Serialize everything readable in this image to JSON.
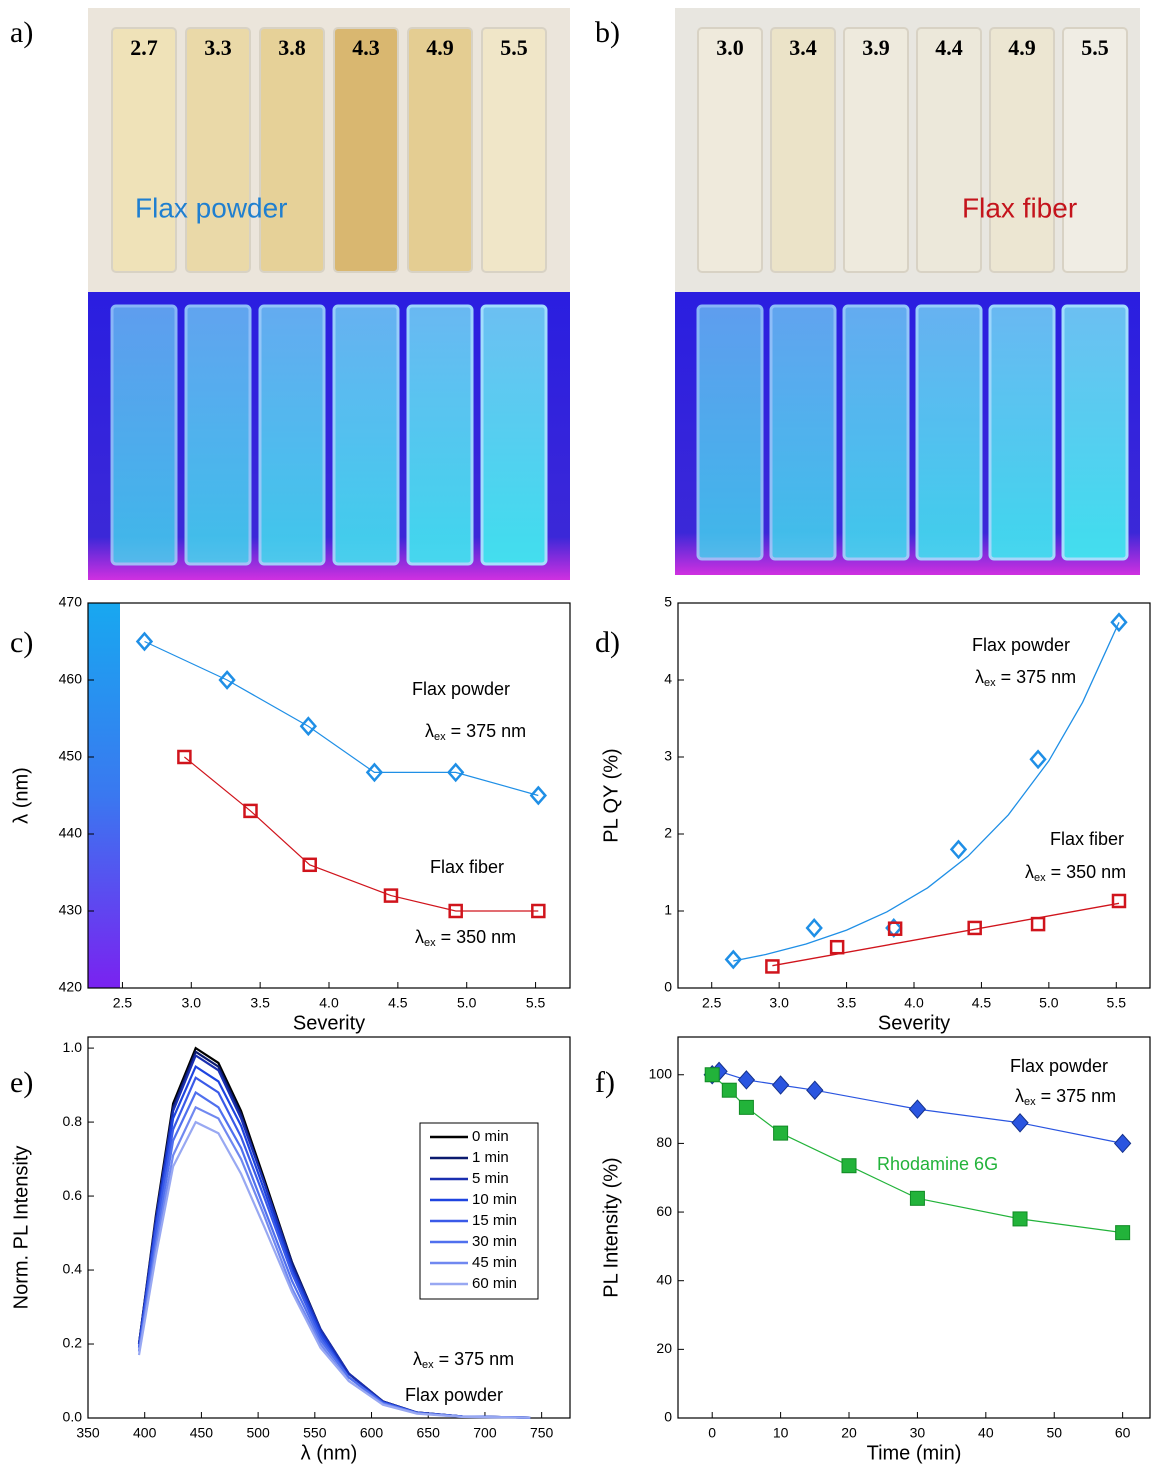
{
  "photos": [
    {
      "label": "a)",
      "cuvettes": [
        "2.7",
        "3.3",
        "3.8",
        "4.3",
        "4.9",
        "5.5"
      ],
      "caption": "Flax powder",
      "caption_color": "#1f7fd0"
    },
    {
      "label": "b)",
      "cuvettes": [
        "3.0",
        "3.4",
        "3.9",
        "4.4",
        "4.9",
        "5.5"
      ],
      "caption": "Flax fiber",
      "caption_color": "#c4141c"
    }
  ],
  "chart_data": [
    {
      "type": "line",
      "panel_label": "c)",
      "xlabel": "Severity",
      "ylabel": "λ (nm)",
      "xlim": [
        2.25,
        5.75
      ],
      "ylim": [
        420,
        470
      ],
      "xticks": [
        2.5,
        {
          "value": 3,
          "label": "3.0"
        },
        3.5,
        {
          "value": 4,
          "label": "4.0"
        },
        4.5,
        {
          "value": 5,
          "label": "5.0"
        },
        5.5
      ],
      "yticks": [
        420,
        430,
        440,
        450,
        460,
        470
      ],
      "series": [
        {
          "name": "Flax powder",
          "color": "#1f8fe6",
          "marker": "diamond",
          "filled": false,
          "connect": true,
          "x": [
            2.66,
            3.26,
            3.85,
            4.33,
            4.92,
            5.52
          ],
          "values": [
            465,
            460,
            454,
            448,
            448,
            445
          ]
        },
        {
          "name": "Flax fiber",
          "color": "#d0141c",
          "marker": "square",
          "filled": false,
          "connect": true,
          "x": [
            2.95,
            3.43,
            3.86,
            4.45,
            4.92,
            5.52
          ],
          "values": [
            450,
            443,
            436,
            432,
            430,
            430
          ]
        }
      ],
      "annotations": [
        {
          "text": "λ",
          "sub": "ex",
          "tail": " = 375 nm"
        },
        {
          "text": "λ",
          "sub": "ex",
          "tail": " = 350 nm"
        }
      ]
    },
    {
      "type": "line",
      "panel_label": "d)",
      "xlabel": "Severity",
      "ylabel": "PL QY (%)",
      "xlim": [
        2.25,
        5.75
      ],
      "ylim": [
        0,
        5
      ],
      "xticks": [
        2.5,
        {
          "value": 3,
          "label": "3.0"
        },
        3.5,
        {
          "value": 4,
          "label": "4.0"
        },
        4.5,
        {
          "value": 5,
          "label": "5.0"
        },
        5.5
      ],
      "yticks": [
        0,
        1,
        2,
        3,
        4,
        5
      ],
      "series": [
        {
          "name": "Flax powder",
          "color": "#1f8fe6",
          "marker": "diamond",
          "filled": false,
          "connect": false,
          "x": [
            2.66,
            3.26,
            3.85,
            4.33,
            4.92,
            5.52
          ],
          "values": [
            0.37,
            0.78,
            0.78,
            1.8,
            2.97,
            4.75
          ],
          "fit": {
            "x": [
              2.66,
              2.9,
              3.2,
              3.5,
              3.8,
              4.1,
              4.4,
              4.7,
              5.0,
              5.25,
              5.52
            ],
            "values": [
              0.35,
              0.435,
              0.572,
              0.752,
              0.989,
              1.3,
              1.71,
              2.25,
              2.95,
              3.71,
              4.75
            ]
          }
        },
        {
          "name": "Flax fiber",
          "color": "#d0141c",
          "marker": "square",
          "filled": false,
          "connect": false,
          "x": [
            2.95,
            3.43,
            3.86,
            4.45,
            4.92,
            5.52
          ],
          "values": [
            0.28,
            0.53,
            0.77,
            0.78,
            0.83,
            1.13
          ],
          "fit": {
            "x": [
              2.95,
              5.52
            ],
            "values": [
              0.29,
              1.1
            ]
          }
        }
      ],
      "annotations": [
        {
          "text": "λ",
          "sub": "ex",
          "tail": " = 375 nm"
        },
        {
          "text": "λ",
          "sub": "ex",
          "tail": " = 350 nm"
        }
      ]
    },
    {
      "type": "line",
      "panel_label": "e)",
      "xlabel": "λ (nm)",
      "ylabel": "Norm. PL Intensity",
      "xlim": [
        350,
        775
      ],
      "ylim": [
        0,
        1.03
      ],
      "xticks": [
        350,
        400,
        450,
        500,
        550,
        600,
        650,
        700,
        750
      ],
      "yticks": [
        {
          "value": 0,
          "label": "0.0"
        },
        0.2,
        0.4,
        0.6,
        0.8,
        {
          "value": 1,
          "label": "1.0"
        }
      ],
      "legend": "upper right",
      "x": [
        395,
        410,
        425,
        445,
        465,
        485,
        505,
        530,
        555,
        580,
        610,
        640,
        680,
        740
      ],
      "series": [
        {
          "name": "0 min",
          "color": "#000000",
          "values": [
            0.2,
            0.55,
            0.85,
            1.0,
            0.96,
            0.83,
            0.65,
            0.42,
            0.24,
            0.12,
            0.045,
            0.015,
            0.004,
            0.001
          ]
        },
        {
          "name": "1 min",
          "color": "#0b1a6e",
          "values": [
            0.2,
            0.54,
            0.84,
            0.99,
            0.95,
            0.82,
            0.64,
            0.42,
            0.24,
            0.12,
            0.045,
            0.015,
            0.004,
            0.001
          ]
        },
        {
          "name": "5 min",
          "color": "#1a2fb0",
          "values": [
            0.2,
            0.54,
            0.83,
            0.98,
            0.94,
            0.81,
            0.64,
            0.41,
            0.24,
            0.12,
            0.044,
            0.015,
            0.004,
            0.001
          ]
        },
        {
          "name": "10 min",
          "color": "#1e44e0",
          "values": [
            0.19,
            0.52,
            0.81,
            0.95,
            0.91,
            0.79,
            0.62,
            0.4,
            0.23,
            0.11,
            0.043,
            0.014,
            0.004,
            0.001
          ]
        },
        {
          "name": "15 min",
          "color": "#3a5ae8",
          "values": [
            0.19,
            0.51,
            0.78,
            0.92,
            0.88,
            0.76,
            0.6,
            0.39,
            0.22,
            0.11,
            0.041,
            0.014,
            0.004,
            0.001
          ]
        },
        {
          "name": "30 min",
          "color": "#5070ee",
          "values": [
            0.18,
            0.48,
            0.75,
            0.88,
            0.84,
            0.73,
            0.57,
            0.37,
            0.21,
            0.11,
            0.04,
            0.013,
            0.004,
            0.001
          ]
        },
        {
          "name": "45 min",
          "color": "#7088f0",
          "values": [
            0.18,
            0.46,
            0.71,
            0.84,
            0.81,
            0.7,
            0.55,
            0.35,
            0.2,
            0.1,
            0.038,
            0.013,
            0.003,
            0.001
          ]
        },
        {
          "name": "60 min",
          "color": "#98a8f2",
          "values": [
            0.17,
            0.44,
            0.68,
            0.8,
            0.77,
            0.66,
            0.52,
            0.34,
            0.19,
            0.1,
            0.036,
            0.012,
            0.003,
            0.001
          ]
        }
      ],
      "annotations": [
        {
          "text": "λ",
          "sub": "ex",
          "tail": " = 375 nm"
        },
        {
          "text": "Flax powder"
        }
      ]
    },
    {
      "type": "line",
      "panel_label": "f)",
      "xlabel": "Time (min)",
      "ylabel": "PL Intensity (%)",
      "xlim": [
        -5,
        64
      ],
      "ylim": [
        0,
        111
      ],
      "xticks": [
        0,
        10,
        20,
        30,
        40,
        50,
        60
      ],
      "yticks": [
        0,
        20,
        40,
        60,
        80,
        100
      ],
      "series": [
        {
          "name": "Flax powder",
          "color": "#2a55e0",
          "marker": "diamond",
          "filled": true,
          "connect": true,
          "label_colored": false,
          "x": [
            0,
            1,
            5,
            10,
            15,
            30,
            45,
            60
          ],
          "values": [
            100,
            101,
            98.5,
            97,
            95.5,
            90,
            86,
            80
          ]
        },
        {
          "name": "Rhodamine 6G",
          "color": "#22b33a",
          "marker": "square",
          "filled": true,
          "connect": true,
          "label_colored": true,
          "x": [
            0,
            2.5,
            5,
            10,
            20,
            30,
            45,
            60
          ],
          "values": [
            100,
            95.5,
            90.5,
            83,
            73.5,
            64,
            58,
            54
          ]
        }
      ],
      "annotations": [
        {
          "text": "λ",
          "sub": "ex",
          "tail": " = 375 nm"
        }
      ]
    }
  ]
}
